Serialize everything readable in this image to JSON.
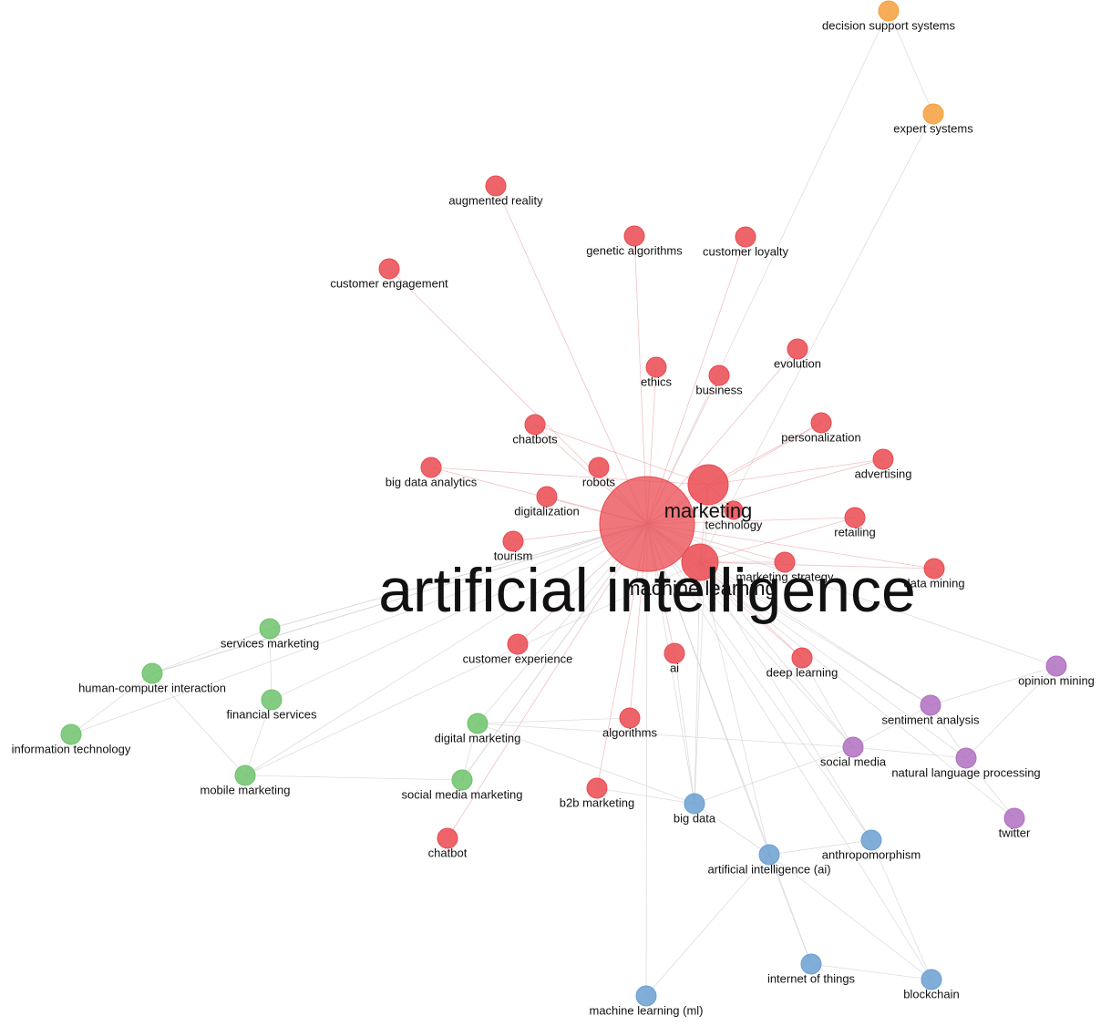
{
  "clusters": [
    {
      "color": "#ea4a50"
    },
    {
      "color": "#6dc36b"
    },
    {
      "color": "#b06ec0"
    },
    {
      "color": "#6b9fd2"
    },
    {
      "color": "#f6a03c"
    }
  ],
  "nodes": [
    {
      "label": "decision support systems",
      "cluster": 4
    },
    {
      "label": "expert systems",
      "cluster": 4
    },
    {
      "label": "augmented reality",
      "cluster": 0
    },
    {
      "label": "genetic algorithms",
      "cluster": 0
    },
    {
      "label": "customer loyalty",
      "cluster": 0
    },
    {
      "label": "customer engagement",
      "cluster": 0
    },
    {
      "label": "ethics",
      "cluster": 0
    },
    {
      "label": "business",
      "cluster": 0
    },
    {
      "label": "evolution",
      "cluster": 0
    },
    {
      "label": "chatbots",
      "cluster": 0
    },
    {
      "label": "personalization",
      "cluster": 0
    },
    {
      "label": "advertising",
      "cluster": 0
    },
    {
      "label": "big data analytics",
      "cluster": 0
    },
    {
      "label": "robots",
      "cluster": 0
    },
    {
      "label": "digitalization",
      "cluster": 0
    },
    {
      "label": "marketing",
      "cluster": 0
    },
    {
      "label": "technology",
      "cluster": 0
    },
    {
      "label": "retailing",
      "cluster": 0
    },
    {
      "label": "tourism",
      "cluster": 0
    },
    {
      "label": "artificial intelligence",
      "cluster": 0
    },
    {
      "label": "machine learning",
      "cluster": 0
    },
    {
      "label": "marketing strategy",
      "cluster": 0
    },
    {
      "label": "data mining",
      "cluster": 0
    },
    {
      "label": "customer experience",
      "cluster": 0
    },
    {
      "label": "ai",
      "cluster": 0
    },
    {
      "label": "deep learning",
      "cluster": 0
    },
    {
      "label": "algorithms",
      "cluster": 0
    },
    {
      "label": "b2b marketing",
      "cluster": 0
    },
    {
      "label": "chatbot",
      "cluster": 0
    },
    {
      "label": "services marketing",
      "cluster": 1
    },
    {
      "label": "human-computer interaction",
      "cluster": 1
    },
    {
      "label": "financial services",
      "cluster": 1
    },
    {
      "label": "information technology",
      "cluster": 1
    },
    {
      "label": "digital marketing",
      "cluster": 1
    },
    {
      "label": "mobile marketing",
      "cluster": 1
    },
    {
      "label": "social media marketing",
      "cluster": 1
    },
    {
      "label": "opinion mining",
      "cluster": 2
    },
    {
      "label": "sentiment analysis",
      "cluster": 2
    },
    {
      "label": "social media",
      "cluster": 2
    },
    {
      "label": "natural language processing",
      "cluster": 2
    },
    {
      "label": "twitter",
      "cluster": 2
    },
    {
      "label": "big data",
      "cluster": 3
    },
    {
      "label": "anthropomorphism",
      "cluster": 3
    },
    {
      "label": "artificial intelligence (ai)",
      "cluster": 3
    },
    {
      "label": "internet of things",
      "cluster": 3
    },
    {
      "label": "machine learning (ml)",
      "cluster": 3
    },
    {
      "label": "blockchain",
      "cluster": 3
    }
  ]
}
